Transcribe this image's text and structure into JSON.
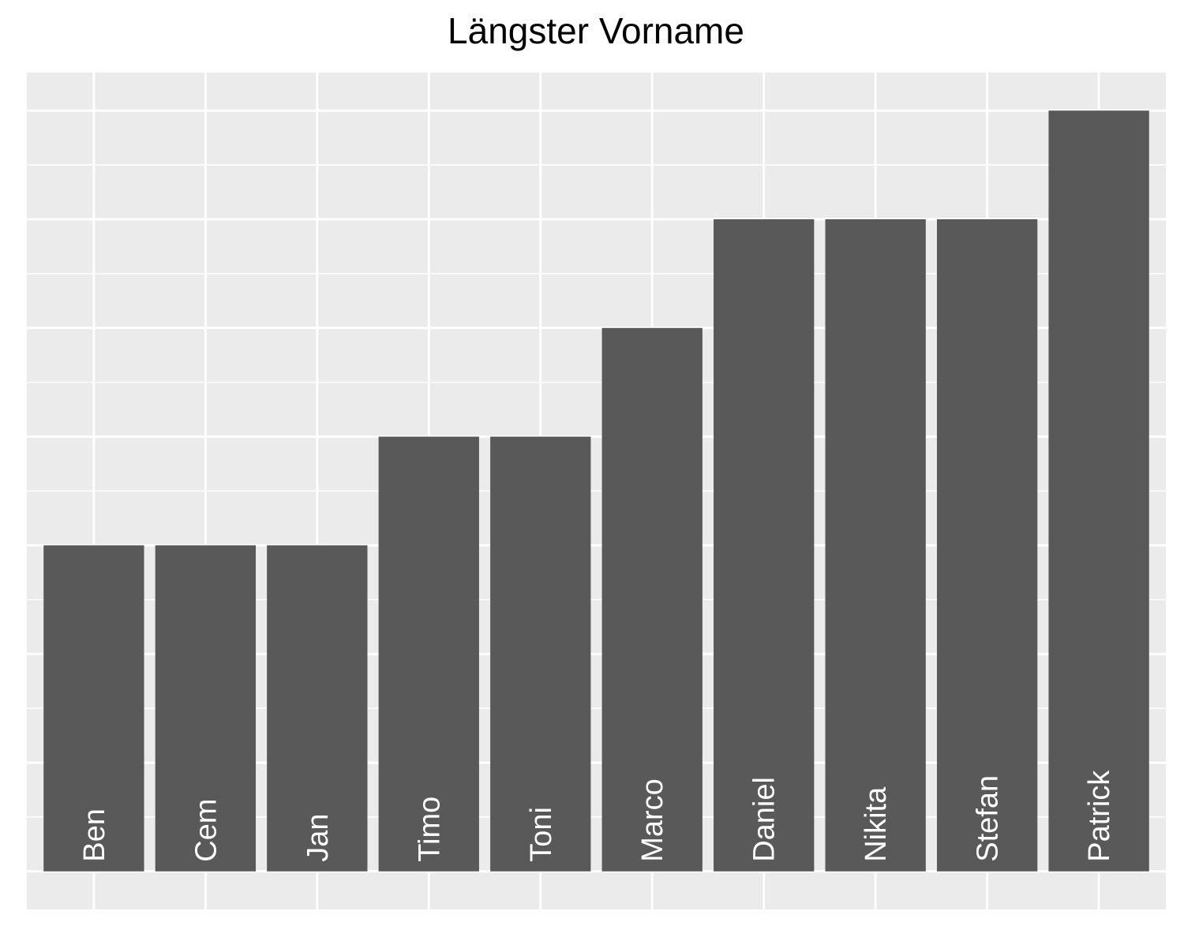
{
  "chart_data": {
    "type": "bar",
    "title": "Längster Vorname",
    "xlabel": "",
    "ylabel": "",
    "categories": [
      "Ben",
      "Cem",
      "Jan",
      "Timo",
      "Toni",
      "Marco",
      "Daniel",
      "Nikita",
      "Stefan",
      "Patrick"
    ],
    "values": [
      3,
      3,
      3,
      4,
      4,
      5,
      6,
      6,
      6,
      7
    ],
    "ylim": [
      -0.35,
      7.35
    ],
    "grid": true,
    "legend": "none",
    "colors": {
      "panel": "#ebebeb",
      "grid": "#ffffff",
      "bar": "#595959",
      "label": "#ffffff",
      "title": "#000000"
    }
  }
}
